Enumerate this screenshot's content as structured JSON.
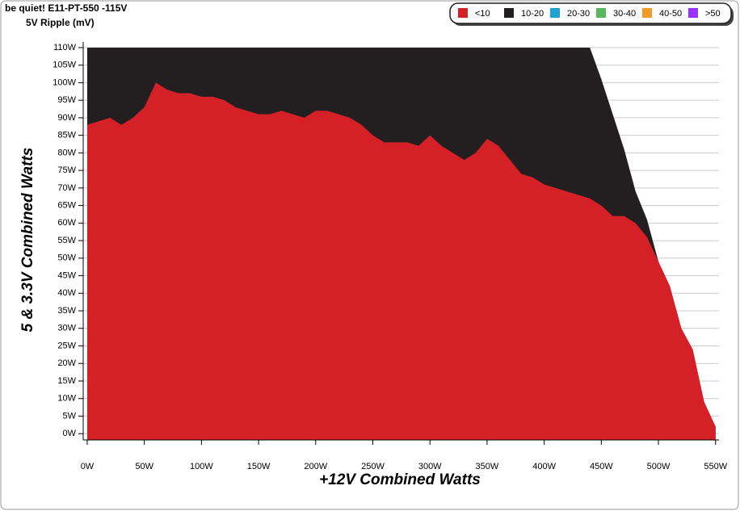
{
  "chart_data": {
    "type": "area",
    "title": "be quiet! E11-PT-550 -115V",
    "subtitle": "5V Ripple (mV)",
    "x_label": "+12V Combined Watts",
    "y_label": "5 & 3.3V Combined Watts",
    "legend": "top-right",
    "grid": true,
    "xlim": [
      -3.5,
      553
    ],
    "ylim": [
      -1.8,
      111.6
    ],
    "xticks": [
      {
        "value": 0,
        "label": "0W"
      },
      {
        "value": 50,
        "label": "50W"
      },
      {
        "value": 100,
        "label": "100W"
      },
      {
        "value": 150,
        "label": "150W"
      },
      {
        "value": 200,
        "label": "200W"
      },
      {
        "value": 250,
        "label": "250W"
      },
      {
        "value": 300,
        "label": "300W"
      },
      {
        "value": 350,
        "label": "350W"
      },
      {
        "value": 400,
        "label": "400W"
      },
      {
        "value": 450,
        "label": "450W"
      },
      {
        "value": 500,
        "label": "500W"
      },
      {
        "value": 550,
        "label": "550W"
      }
    ],
    "yticks": [
      {
        "value": 0,
        "label": "0W"
      },
      {
        "value": 5,
        "label": "5W"
      },
      {
        "value": 10,
        "label": "10W"
      },
      {
        "value": 15,
        "label": "15W"
      },
      {
        "value": 20,
        "label": "20W"
      },
      {
        "value": 25,
        "label": "25W"
      },
      {
        "value": 30,
        "label": "30W"
      },
      {
        "value": 35,
        "label": "35W"
      },
      {
        "value": 40,
        "label": "40W"
      },
      {
        "value": 45,
        "label": "45W"
      },
      {
        "value": 50,
        "label": "50W"
      },
      {
        "value": 55,
        "label": "55W"
      },
      {
        "value": 60,
        "label": "60W"
      },
      {
        "value": 65,
        "label": "65W"
      },
      {
        "value": 70,
        "label": "70W"
      },
      {
        "value": 75,
        "label": "75W"
      },
      {
        "value": 80,
        "label": "80W"
      },
      {
        "value": 85,
        "label": "85W"
      },
      {
        "value": 90,
        "label": "90W"
      },
      {
        "value": 95,
        "label": "95W"
      },
      {
        "value": 100,
        "label": "100W"
      },
      {
        "value": 105,
        "label": "105W"
      },
      {
        "value": 110,
        "label": "110W"
      }
    ],
    "x": [
      0,
      10,
      20,
      30,
      40,
      50,
      60,
      70,
      80,
      90,
      100,
      110,
      120,
      130,
      140,
      150,
      160,
      170,
      180,
      190,
      200,
      210,
      220,
      230,
      240,
      250,
      260,
      270,
      280,
      290,
      300,
      310,
      320,
      330,
      340,
      350,
      360,
      370,
      380,
      390,
      400,
      410,
      420,
      430,
      440,
      450,
      460,
      470,
      480,
      490,
      500,
      510,
      520,
      530,
      540,
      550
    ],
    "series": [
      {
        "name": "<10",
        "color": "#d62027",
        "values": [
          88,
          89,
          90,
          88,
          90,
          93,
          100,
          98,
          97,
          97,
          96,
          96,
          95,
          93,
          92,
          91,
          91,
          92,
          91,
          90,
          92,
          92,
          91,
          90,
          88,
          85,
          83,
          83,
          83,
          82,
          85,
          82,
          80,
          78,
          80,
          84,
          82,
          78,
          74,
          73,
          71,
          70,
          69,
          68,
          67,
          65,
          62,
          62,
          60,
          56,
          49,
          42,
          30,
          24,
          9,
          2
        ]
      },
      {
        "name": "10-20",
        "color": "#231f20",
        "values": [
          110,
          110,
          110,
          110,
          110,
          110,
          110,
          110,
          110,
          110,
          110,
          110,
          110,
          110,
          110,
          110,
          110,
          110,
          110,
          110,
          110,
          110,
          110,
          110,
          110,
          110,
          110,
          110,
          110,
          110,
          110,
          110,
          110,
          110,
          110,
          110,
          110,
          110,
          110,
          110,
          110,
          110,
          110,
          110,
          110,
          101,
          91,
          81,
          69,
          61,
          49,
          42,
          30,
          24,
          9,
          2
        ]
      },
      {
        "name": "20-30",
        "color": "#1ea1d4",
        "values": [
          null,
          null,
          null,
          null,
          null,
          null,
          null,
          null,
          null,
          null,
          null,
          null,
          null,
          null,
          null,
          null,
          null,
          null,
          null,
          null,
          null,
          null,
          null,
          null,
          null,
          null,
          null,
          null,
          null,
          null,
          null,
          null,
          null,
          null,
          null,
          null,
          null,
          null,
          null,
          null,
          null,
          null,
          null,
          null,
          null,
          null,
          null,
          null,
          null,
          null,
          null,
          null,
          null,
          null,
          null,
          null
        ]
      },
      {
        "name": "30-40",
        "color": "#5cb85c",
        "values": [
          null,
          null,
          null,
          null,
          null,
          null,
          null,
          null,
          null,
          null,
          null,
          null,
          null,
          null,
          null,
          null,
          null,
          null,
          null,
          null,
          null,
          null,
          null,
          null,
          null,
          null,
          null,
          null,
          null,
          null,
          null,
          null,
          null,
          null,
          null,
          null,
          null,
          null,
          null,
          null,
          null,
          null,
          null,
          null,
          null,
          null,
          null,
          null,
          null,
          null,
          null,
          null,
          null,
          null,
          null,
          null
        ]
      },
      {
        "name": "40-50",
        "color": "#f29b2b",
        "values": [
          null,
          null,
          null,
          null,
          null,
          null,
          null,
          null,
          null,
          null,
          null,
          null,
          null,
          null,
          null,
          null,
          null,
          null,
          null,
          null,
          null,
          null,
          null,
          null,
          null,
          null,
          null,
          null,
          null,
          null,
          null,
          null,
          null,
          null,
          null,
          null,
          null,
          null,
          null,
          null,
          null,
          null,
          null,
          null,
          null,
          null,
          null,
          null,
          null,
          null,
          null,
          null,
          null,
          null,
          null,
          null
        ]
      },
      {
        "name": ">50",
        "color": "#9b30ff",
        "values": [
          null,
          null,
          null,
          null,
          null,
          null,
          null,
          null,
          null,
          null,
          null,
          null,
          null,
          null,
          null,
          null,
          null,
          null,
          null,
          null,
          null,
          null,
          null,
          null,
          null,
          null,
          null,
          null,
          null,
          null,
          null,
          null,
          null,
          null,
          null,
          null,
          null,
          null,
          null,
          null,
          null,
          null,
          null,
          null,
          null,
          null,
          null,
          null,
          null,
          null,
          null,
          null,
          null,
          null,
          null,
          null
        ]
      }
    ]
  }
}
